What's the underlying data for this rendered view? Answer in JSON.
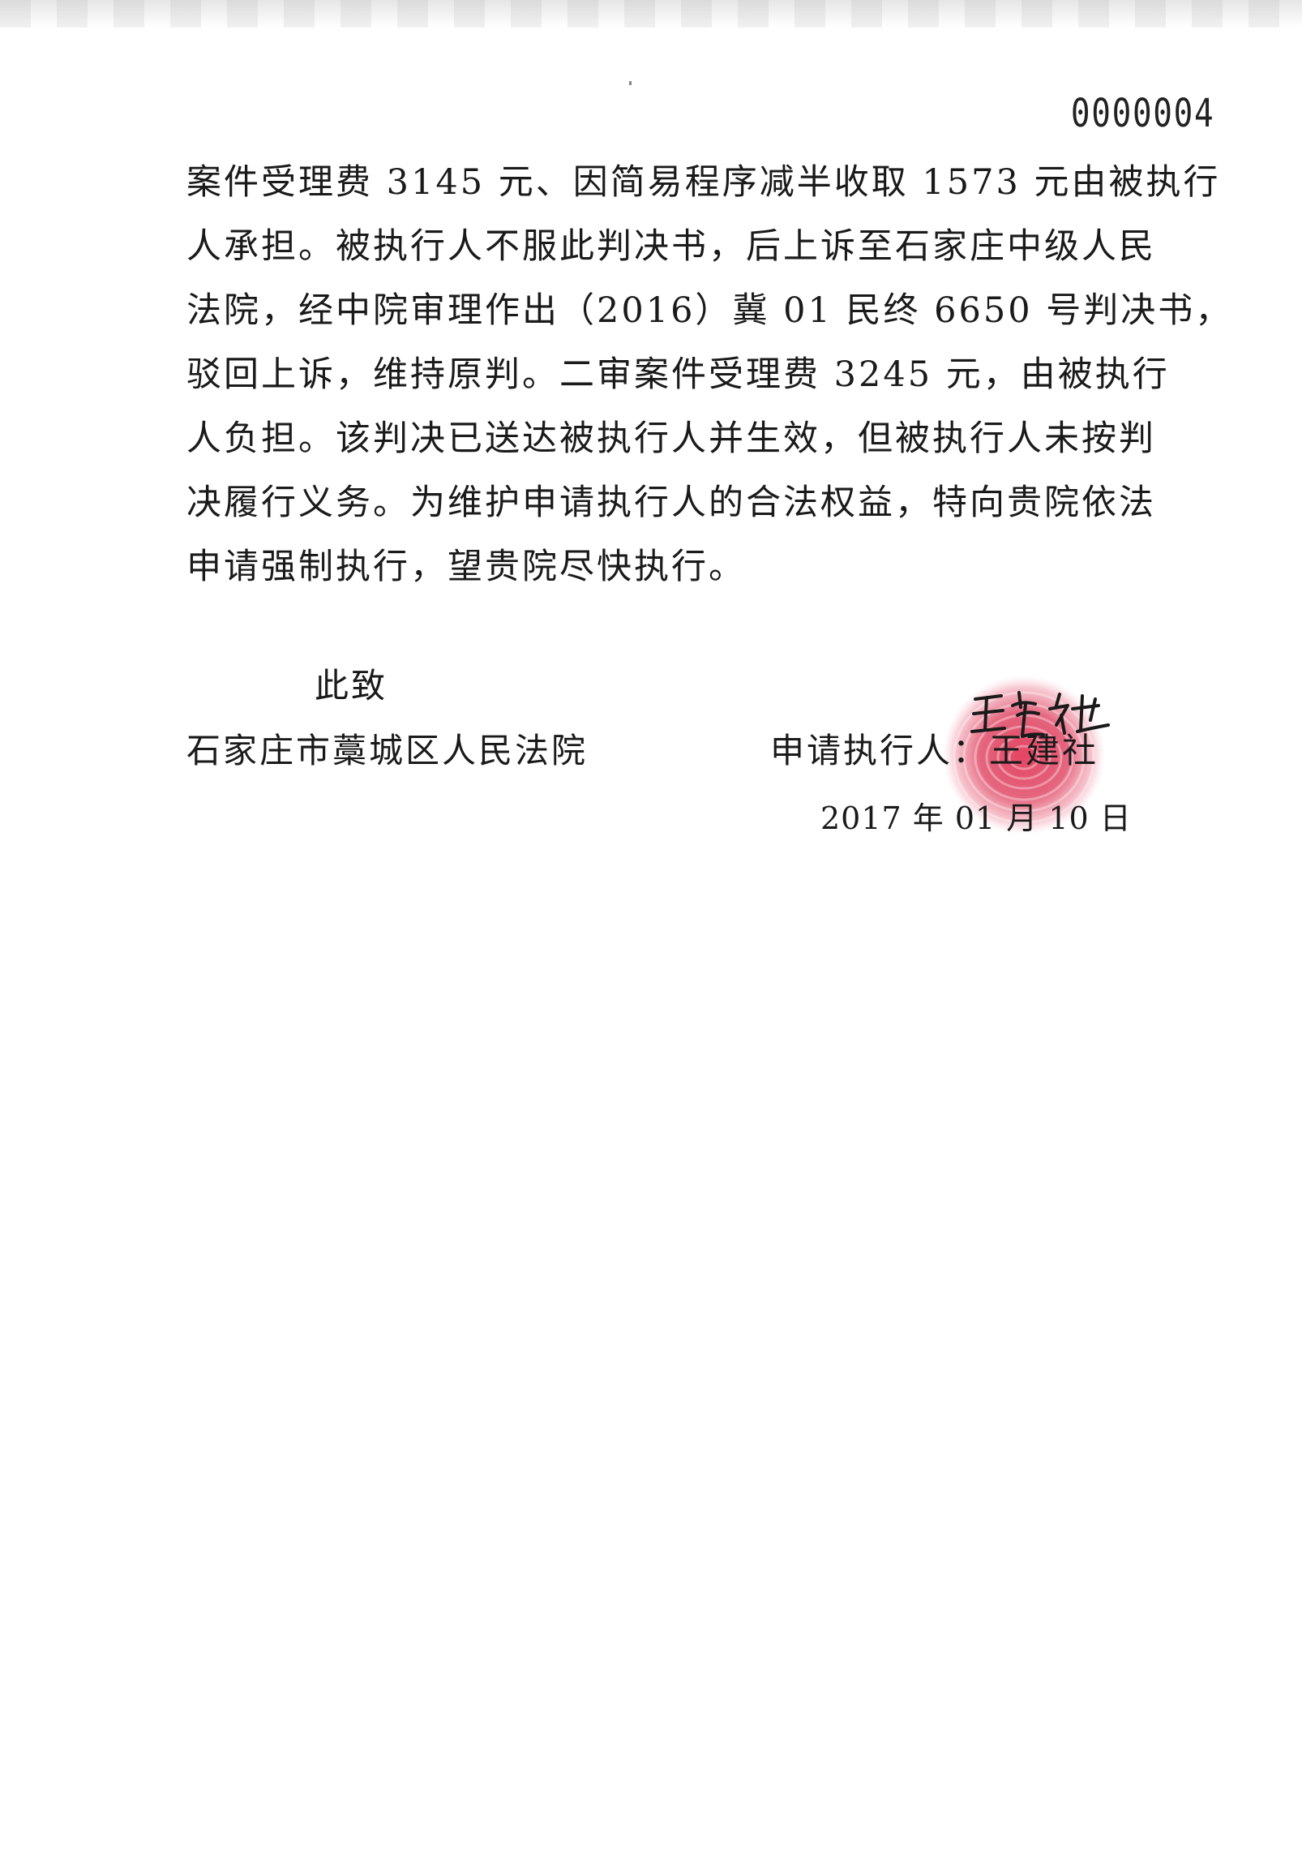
{
  "page_number": "0000004",
  "body": {
    "lines": [
      "案件受理费 3145 元、因简易程序减半收取 1573 元由被执行",
      "人承担。被执行人不服此判决书，后上诉至石家庄中级人民",
      "法院，经中院审理作出（2016）冀 01 民终 6650 号判决书，",
      "驳回上诉，维持原判。二审案件受理费 3245 元，由被执行",
      "人负担。该判决已送达被执行人并生效，但被执行人未按判",
      "决履行义务。为维护申请执行人的合法权益，特向贵院依法",
      "申请强制执行，望贵院尽快执行。"
    ]
  },
  "closing": "此致",
  "court_name": "石家庄市藁城区人民法院",
  "applicant": {
    "label": "申请执行人：",
    "name": "王建社",
    "signature_text": "王建社"
  },
  "date": "2017 年 01 月 10 日",
  "colors": {
    "ink": "#1a1a1a",
    "fingerprint": "#d8304e"
  }
}
